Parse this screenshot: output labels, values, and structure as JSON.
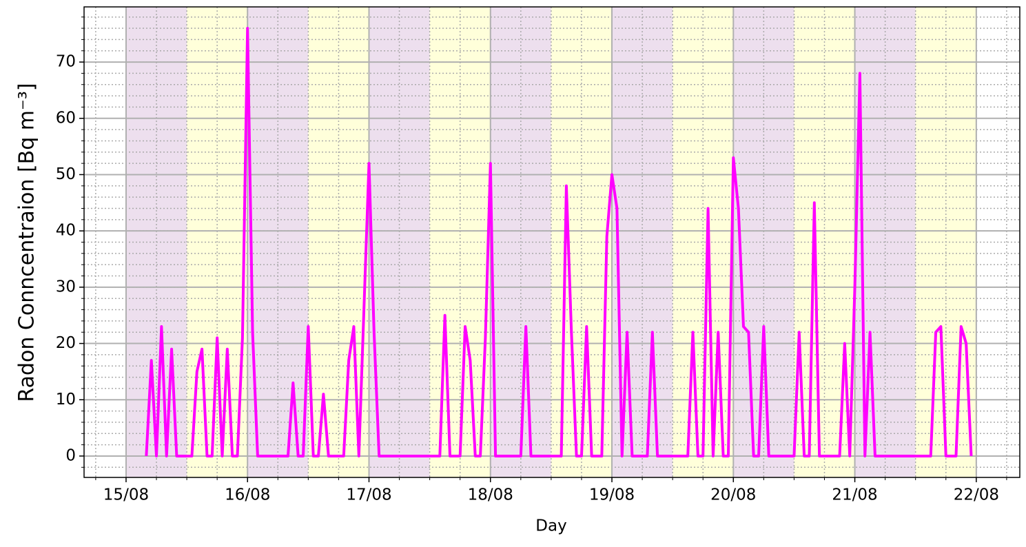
{
  "chart_data": {
    "type": "line",
    "x_label": "Day",
    "y_label": "Radon Conncentraion [Bq m⁻³]",
    "x": [
      4,
      5,
      6,
      7,
      8,
      9,
      10,
      13,
      14,
      15,
      16,
      17,
      18,
      19,
      20,
      21,
      22,
      23,
      24,
      25,
      26,
      32,
      33,
      34,
      35,
      36,
      37,
      38,
      39,
      40,
      43,
      44,
      45,
      46,
      48,
      49,
      50,
      62,
      63,
      64,
      66,
      67,
      68,
      69,
      70,
      71,
      72,
      73,
      78,
      79,
      80,
      86,
      87,
      88,
      89,
      90,
      91,
      92,
      94,
      95,
      96,
      97,
      98,
      99,
      100,
      103,
      104,
      105,
      111,
      112,
      113,
      114,
      115,
      116,
      117,
      118,
      119,
      120,
      121,
      122,
      123,
      124,
      125,
      126,
      127,
      132,
      133,
      134,
      135,
      136,
      137,
      141,
      142,
      143,
      144,
      145,
      146,
      147,
      148,
      159,
      160,
      161,
      162,
      164,
      165,
      166,
      167
    ],
    "values": [
      0,
      17,
      0,
      23,
      0,
      19,
      0,
      0,
      15,
      19,
      0,
      0,
      21,
      0,
      19,
      0,
      0,
      21,
      76,
      22,
      0,
      0,
      13,
      0,
      0,
      23,
      0,
      0,
      11,
      0,
      0,
      17,
      23,
      0,
      52,
      22,
      0,
      0,
      25,
      0,
      0,
      23,
      17,
      0,
      0,
      21,
      52,
      0,
      0,
      23,
      0,
      0,
      48,
      22,
      0,
      0,
      23,
      0,
      0,
      39,
      50,
      44,
      0,
      22,
      0,
      0,
      22,
      0,
      0,
      22,
      0,
      0,
      44,
      0,
      22,
      0,
      0,
      53,
      44,
      23,
      22,
      0,
      0,
      23,
      0,
      0,
      22,
      0,
      0,
      45,
      0,
      0,
      20,
      0,
      30,
      68,
      0,
      22,
      0,
      0,
      22,
      23,
      0,
      0,
      23,
      20,
      0
    ],
    "color": "#ff00ff",
    "xlim": [
      -8.3,
      176.6
    ],
    "ylim": [
      -3.8,
      79.8
    ],
    "xticks": [
      {
        "value": 0,
        "label": "15/08"
      },
      {
        "value": 24,
        "label": "16/08"
      },
      {
        "value": 48,
        "label": "17/08"
      },
      {
        "value": 72,
        "label": "18/08"
      },
      {
        "value": 96,
        "label": "19/08"
      },
      {
        "value": 120,
        "label": "20/08"
      },
      {
        "value": 144,
        "label": "21/08"
      },
      {
        "value": 168,
        "label": "22/08"
      }
    ],
    "yticks": [
      0,
      10,
      20,
      30,
      40,
      50,
      60,
      70
    ],
    "grid": true,
    "minor_grid": true,
    "band_colors": [
      "#eddfee",
      "#ffffda"
    ]
  }
}
